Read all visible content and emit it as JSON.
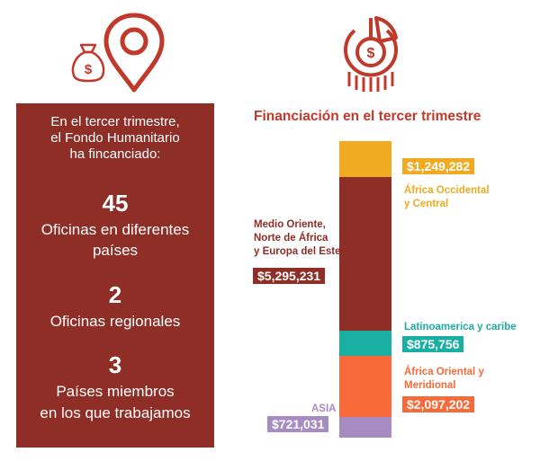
{
  "colors": {
    "panel_bg": "#8e2e26",
    "title_red": "#c0392b",
    "africa_occ": "#f0ab23",
    "medio_oriente": "#8e2e26",
    "latam": "#1aafa3",
    "africa_or": "#f86a3a",
    "asia": "#a98bc3"
  },
  "icons": [
    "money-bag-icon",
    "location-pin-icon",
    "pie-chart-dollar-icon"
  ],
  "left": {
    "intro_1": "En el tercer trimestre,",
    "intro_2": "el Fondo Humanitario",
    "intro_3": "ha fincanciado:",
    "stat1_num": "45",
    "stat1_l1": "Oficinas en diferentes",
    "stat1_l2": "países",
    "stat2_num": "2",
    "stat2_l1": "Oficinas regionales",
    "stat3_num": "3",
    "stat3_l1": "Países miembros",
    "stat3_l2": "en los que trabajamos"
  },
  "chart_title": "Financiación en el tercer trimestre",
  "chart_data": {
    "type": "bar",
    "title": "Financiación en el tercer trimestre",
    "stacked": true,
    "series": [
      {
        "name_l1": "África Occidental",
        "name_l2": "y Central",
        "value_label": "$1,249,282",
        "value": 1249282
      },
      {
        "name_l1": "Medio Oriente,",
        "name_l2": "Norte de África",
        "name_l3": "y Europa del Este",
        "value_label": "$5,295,231",
        "value": 5295231
      },
      {
        "name_l1": "Latinoamerica y caribe",
        "value_label": "$875,756",
        "value": 875756
      },
      {
        "name_l1": "África Oriental y",
        "name_l2": "Meridional",
        "value_label": "$2,097,202",
        "value": 2097202
      },
      {
        "name_l1": "ASIA",
        "value_label": "$721,031",
        "value": 721031
      }
    ]
  }
}
